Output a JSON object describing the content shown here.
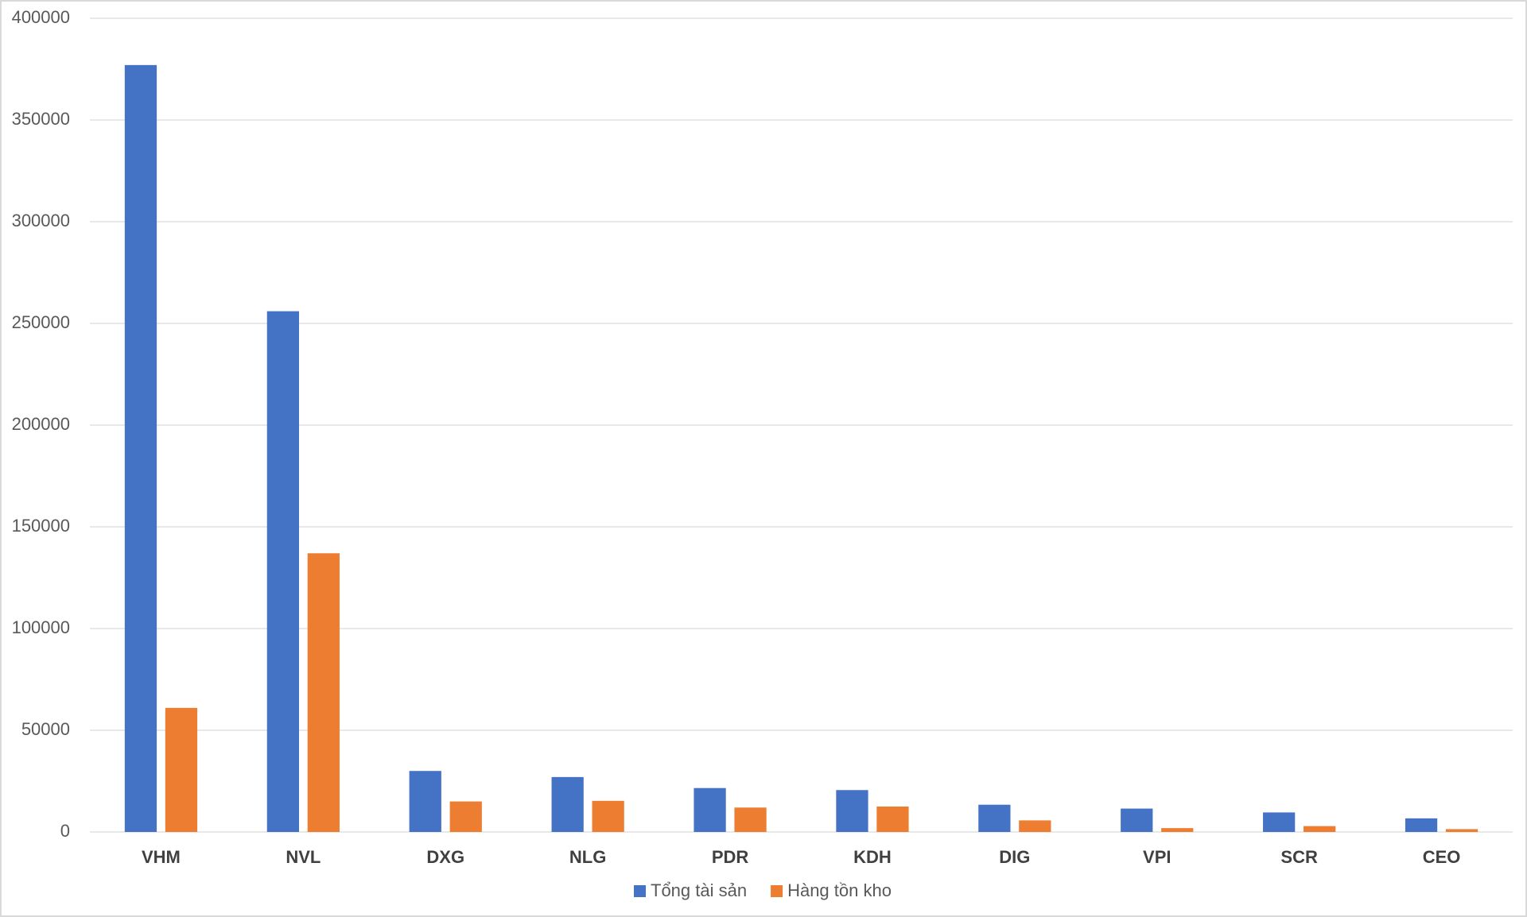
{
  "chart_data": {
    "type": "bar",
    "categories": [
      "VHM",
      "NVL",
      "DXG",
      "NLG",
      "PDR",
      "KDH",
      "DIG",
      "VPI",
      "SCR",
      "CEO"
    ],
    "series": [
      {
        "name": "Tổng tài sản",
        "color": "#4472c4",
        "values": [
          377000,
          256000,
          30000,
          27000,
          21600,
          20600,
          13400,
          11500,
          9600,
          6700
        ]
      },
      {
        "name": "Hàng tồn kho",
        "color": "#ed7d31",
        "values": [
          61000,
          137000,
          15000,
          15300,
          12000,
          12500,
          5700,
          1900,
          2900,
          1400
        ]
      }
    ],
    "ylim": [
      0,
      400000
    ],
    "yticks": [
      0,
      50000,
      100000,
      150000,
      200000,
      250000,
      300000,
      350000,
      400000
    ],
    "grid": true,
    "legend": "bottom"
  }
}
